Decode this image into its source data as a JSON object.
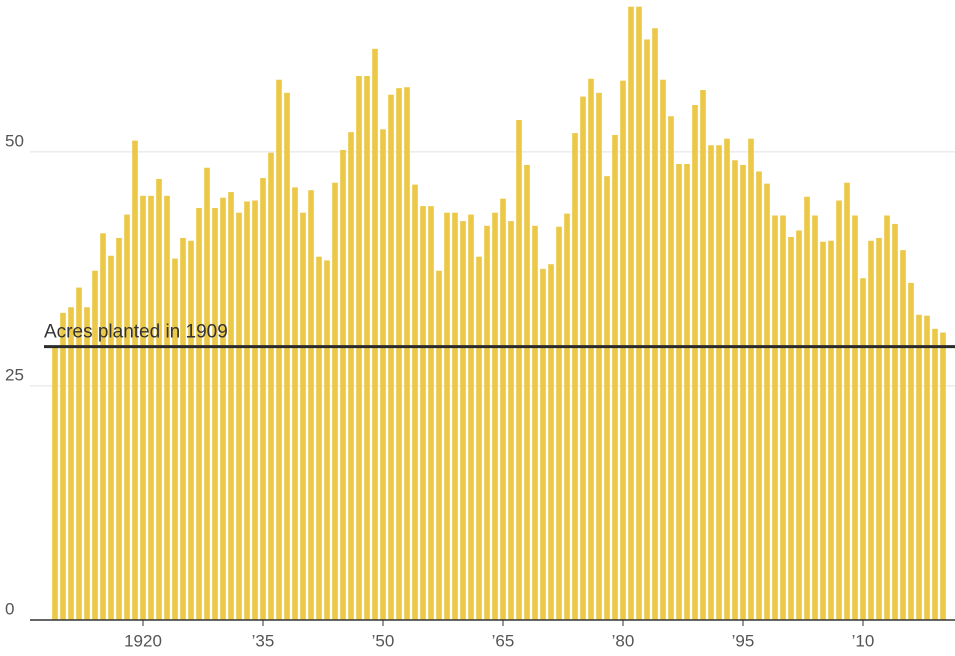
{
  "chart_data": {
    "type": "bar",
    "categories": [
      null,
      null,
      null,
      null,
      null,
      null,
      null,
      null,
      null,
      null,
      null,
      "1920",
      null,
      null,
      null,
      null,
      null,
      null,
      null,
      null,
      null,
      null,
      null,
      null,
      null,
      null,
      "’35",
      null,
      null,
      null,
      null,
      null,
      null,
      null,
      null,
      null,
      null,
      null,
      null,
      null,
      null,
      "’50",
      null,
      null,
      null,
      null,
      null,
      null,
      null,
      null,
      null,
      null,
      null,
      null,
      null,
      null,
      "’65",
      null,
      null,
      null,
      null,
      null,
      null,
      null,
      null,
      null,
      null,
      null,
      null,
      null,
      null,
      "’80",
      null,
      null,
      null,
      null,
      null,
      null,
      null,
      null,
      null,
      null,
      null,
      null,
      null,
      null,
      "’95",
      null,
      null,
      null,
      null,
      null,
      null,
      null,
      null,
      null,
      null,
      null,
      null,
      null,
      null,
      "’10",
      null,
      null,
      null,
      null,
      null,
      null,
      null,
      null,
      null,
      null
    ],
    "values": [
      29.2,
      32.8,
      33.4,
      35.5,
      33.4,
      37.3,
      41.3,
      38.9,
      40.8,
      43.3,
      51.2,
      45.3,
      45.3,
      47.1,
      45.3,
      38.6,
      40.8,
      40.5,
      44.0,
      48.3,
      44.0,
      45.1,
      45.7,
      43.5,
      44.7,
      44.8,
      47.2,
      49.9,
      57.7,
      56.3,
      46.2,
      43.5,
      45.9,
      38.8,
      38.4,
      46.7,
      50.2,
      52.1,
      58.1,
      58.1,
      61.0,
      52.4,
      56.1,
      56.8,
      56.9,
      46.5,
      44.2,
      44.2,
      37.3,
      43.5,
      43.5,
      42.6,
      43.3,
      38.8,
      42.1,
      43.5,
      45.0,
      42.6,
      53.4,
      48.6,
      42.1,
      37.5,
      38.0,
      42.0,
      43.4,
      52.0,
      55.9,
      57.8,
      56.3,
      47.4,
      51.8,
      57.6,
      65.5,
      65.5,
      62.0,
      63.2,
      57.7,
      53.8,
      48.7,
      48.7,
      55.0,
      56.6,
      50.7,
      50.7,
      51.4,
      49.1,
      48.6,
      51.4,
      47.9,
      46.6,
      43.2,
      43.2,
      40.9,
      41.6,
      45.2,
      43.2,
      40.4,
      40.5,
      44.8,
      46.7,
      43.2,
      36.5,
      40.5,
      40.8,
      43.2,
      42.3,
      39.5,
      36.0,
      32.6,
      32.5,
      31.1,
      30.7
    ],
    "color": "#ebc846",
    "ylim": [
      0,
      66
    ],
    "yticks": [
      0,
      25,
      50
    ],
    "grid": true,
    "annotations": [
      {
        "label": "Acres planted in 1909",
        "value": 29.2
      }
    ]
  }
}
